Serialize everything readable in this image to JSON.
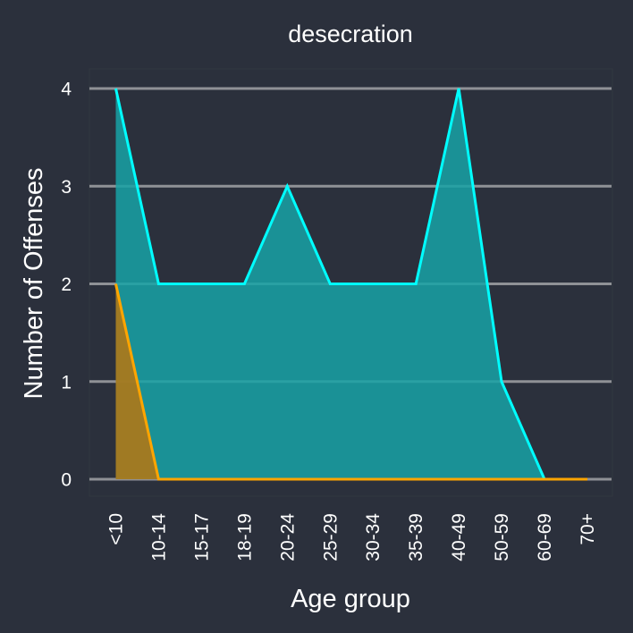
{
  "chart_data": {
    "type": "area",
    "title": "desecration",
    "xlabel": "Age group",
    "ylabel": "Number of Offenses",
    "categories": [
      "<10",
      "10-14",
      "15-17",
      "18-19",
      "20-24",
      "25-29",
      "30-34",
      "35-39",
      "40-49",
      "50-59",
      "60-69",
      "70+"
    ],
    "ylim": [
      0,
      4
    ],
    "yticks": [
      0,
      1,
      2,
      3,
      4
    ],
    "grid": "horizontal",
    "series": [
      {
        "color": "#00ffff",
        "fill": "#17a2a6",
        "values": [
          4,
          2,
          2,
          2,
          3,
          2,
          2,
          2,
          4,
          1,
          0,
          null
        ]
      },
      {
        "color": "#ffa500",
        "fill": "#b8760f",
        "values": [
          2,
          0,
          0,
          0,
          0,
          0,
          0,
          0,
          0,
          0,
          0,
          0
        ]
      }
    ]
  },
  "colors": {
    "background": "#2b303c",
    "panel": "#2b303c",
    "grid": "#8f9196"
  }
}
